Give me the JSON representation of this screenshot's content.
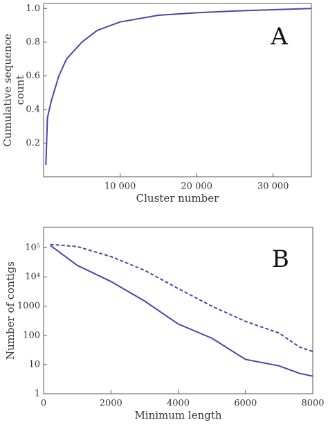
{
  "chart_data": [
    {
      "type": "line",
      "ylabel": [
        "Cumulative sequence",
        "count"
      ],
      "xlabel": "Cluster number",
      "annotation": "A",
      "x": [
        300,
        500,
        1000,
        2000,
        3000,
        5000,
        7000,
        10000,
        15000,
        20000,
        25000,
        30000,
        35000
      ],
      "series": [
        {
          "color": "#4646a8",
          "values": [
            0.07,
            0.35,
            0.45,
            0.6,
            0.7,
            0.8,
            0.87,
            0.92,
            0.96,
            0.975,
            0.985,
            0.993,
            1.0
          ]
        }
      ],
      "xlim": [
        0,
        35000
      ],
      "ylim": [
        0,
        1.03
      ],
      "xticks": [
        {
          "value": 10000,
          "label": "10 000"
        },
        {
          "value": 20000,
          "label": "20 000"
        },
        {
          "value": 30000,
          "label": "30 000"
        }
      ],
      "yticks": [
        0.2,
        0.4,
        0.6,
        0.8,
        {
          "value": 1,
          "label": "1.0"
        }
      ]
    },
    {
      "type": "line",
      "ylabel": [
        "Number of contigs"
      ],
      "xlabel": "Minimum length",
      "annotation": "B",
      "log_y": true,
      "x": [
        200,
        1000,
        2000,
        3000,
        4000,
        5000,
        6000,
        7000,
        7600,
        8000
      ],
      "series": [
        {
          "color": "#4646a8",
          "dashed": false,
          "values": [
            120000,
            25000,
            7000,
            1500,
            245,
            80,
            15,
            9,
            5,
            4
          ]
        },
        {
          "color": "#4646a8",
          "dashed": true,
          "values": [
            130000,
            110000,
            50000,
            17000,
            4000,
            1000,
            300,
            120,
            40,
            28
          ]
        }
      ],
      "xlim": [
        0,
        8000
      ],
      "ylim": [
        1,
        500000
      ],
      "xticks": [
        0,
        2000,
        4000,
        6000,
        8000
      ],
      "yticks": [
        1,
        10,
        100,
        1000,
        {
          "value": 10000,
          "label": "10⁴"
        },
        {
          "value": 100000,
          "label": "10⁵"
        }
      ]
    }
  ]
}
